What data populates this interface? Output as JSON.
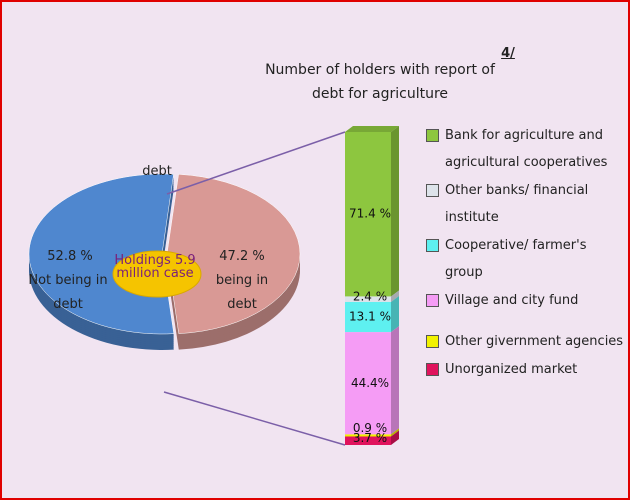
{
  "chart_data": {
    "type": "pie-of-bar",
    "title": "Number of holders with report of debt for agriculture",
    "title_note": "4/",
    "pie_label": "debt",
    "center_label": "Holdings 5.9 million case",
    "pie": {
      "categories": [
        "Not being in debt",
        "being in debt"
      ],
      "values": [
        52.8,
        47.2
      ],
      "value_labels": [
        "52.8 %",
        "47.2 %"
      ],
      "colors": [
        "#4f87cf",
        "#d99995"
      ]
    },
    "bar": {
      "categories": [
        "Bank for agriculture and agricultural cooperatives",
        "Other banks/ financial institute",
        "Cooperative/ farmer's group",
        "Village and city fund",
        "Other givernment agencies",
        "Unorganized market"
      ],
      "values": [
        71.4,
        2.4,
        13.1,
        44.4,
        0.9,
        3.7
      ],
      "value_labels": [
        "71.4 %",
        "2.4 %",
        "13.1 %",
        "44.4%",
        "0.9 %",
        "3.7 %"
      ],
      "colors": [
        "#8dc63f",
        "#dde3ea",
        "#5ef0f0",
        "#f59cf5",
        "#f2f200",
        "#e0135d"
      ]
    }
  }
}
